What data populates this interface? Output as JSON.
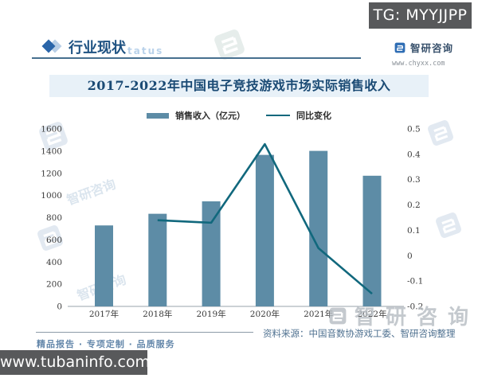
{
  "overlay": {
    "tg_label": "TG: MYYJJPP",
    "site_label": "www.tubaninfo.com"
  },
  "header": {
    "section_title": "行业现状",
    "ghost_suffix": "tatus",
    "brand_name": "智研咨询",
    "brand_url": "www.chyxx.com"
  },
  "chart_title": "2017-2022年中国电子竞技游戏市场实际销售收入",
  "legend": [
    {
      "label": "销售收入（亿元）",
      "type": "bar"
    },
    {
      "label": "同比变化",
      "type": "line"
    }
  ],
  "footer": {
    "source": "资料来源：中国音数协游戏工委、智研咨询整理",
    "slogan": "精品报告 · 专项定制 · 品质服务",
    "watermark": "智研咨询"
  },
  "colors": {
    "bar": "#5d8ca6",
    "line": "#11687d",
    "accent_blue": "#2a65a9",
    "banner_bg": "#e8f1f8",
    "title_text": "#1a4a74",
    "badge_bg": "#58595b"
  },
  "chart_data": {
    "type": "bar",
    "title": "2017-2022年中国电子竞技游戏市场实际销售收入",
    "categories": [
      "2017年",
      "2018年",
      "2019年",
      "2020年",
      "2021年",
      "2022年"
    ],
    "series": [
      {
        "name": "销售收入（亿元）",
        "type": "bar",
        "axis": "left",
        "values": [
          730,
          835,
          947,
          1366,
          1402,
          1178
        ]
      },
      {
        "name": "同比变化",
        "type": "line",
        "axis": "right",
        "values": [
          null,
          0.14,
          0.13,
          0.44,
          0.03,
          -0.15
        ]
      }
    ],
    "left_axis": {
      "min": 0,
      "max": 1600,
      "step": 200
    },
    "right_axis": {
      "min": -0.2,
      "max": 0.5,
      "step": 0.1
    },
    "grid": false,
    "legend_position": "top"
  }
}
